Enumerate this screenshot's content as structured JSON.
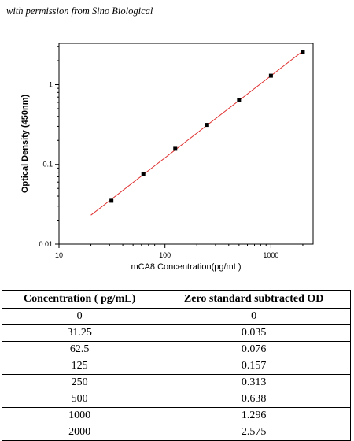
{
  "caption": "with permission from Sino Biological",
  "chart_data": {
    "type": "scatter",
    "xlabel": "mCA8  Concentration(pg/mL)",
    "ylabel": "Optical Density (450nm)",
    "x_scale": "log",
    "y_scale": "log",
    "xlim": [
      10,
      2500
    ],
    "ylim": [
      0.01,
      3.3
    ],
    "x_ticks": [
      10,
      100,
      1000
    ],
    "x_tick_labels": [
      "10",
      "100",
      "1000"
    ],
    "y_ticks": [
      0.01,
      0.1,
      1
    ],
    "y_tick_labels": [
      "0.01",
      "0.1",
      "1"
    ],
    "grid": false,
    "marker_color": "#000000",
    "fit_line_color": "#e03030",
    "fit_line_range": [
      20,
      2000
    ],
    "points": [
      {
        "x": 31.25,
        "y": 0.035
      },
      {
        "x": 62.5,
        "y": 0.076
      },
      {
        "x": 125,
        "y": 0.157
      },
      {
        "x": 250,
        "y": 0.313
      },
      {
        "x": 500,
        "y": 0.638
      },
      {
        "x": 1000,
        "y": 1.296
      },
      {
        "x": 2000,
        "y": 2.575
      }
    ]
  },
  "table": {
    "headers": [
      "Concentration ( pg/mL)",
      "Zero standard subtracted OD"
    ],
    "rows": [
      [
        "0",
        "0"
      ],
      [
        "31.25",
        "0.035"
      ],
      [
        "62.5",
        "0.076"
      ],
      [
        "125",
        "0.157"
      ],
      [
        "250",
        "0.313"
      ],
      [
        "500",
        "0.638"
      ],
      [
        "1000",
        "1.296"
      ],
      [
        "2000",
        "2.575"
      ]
    ]
  }
}
